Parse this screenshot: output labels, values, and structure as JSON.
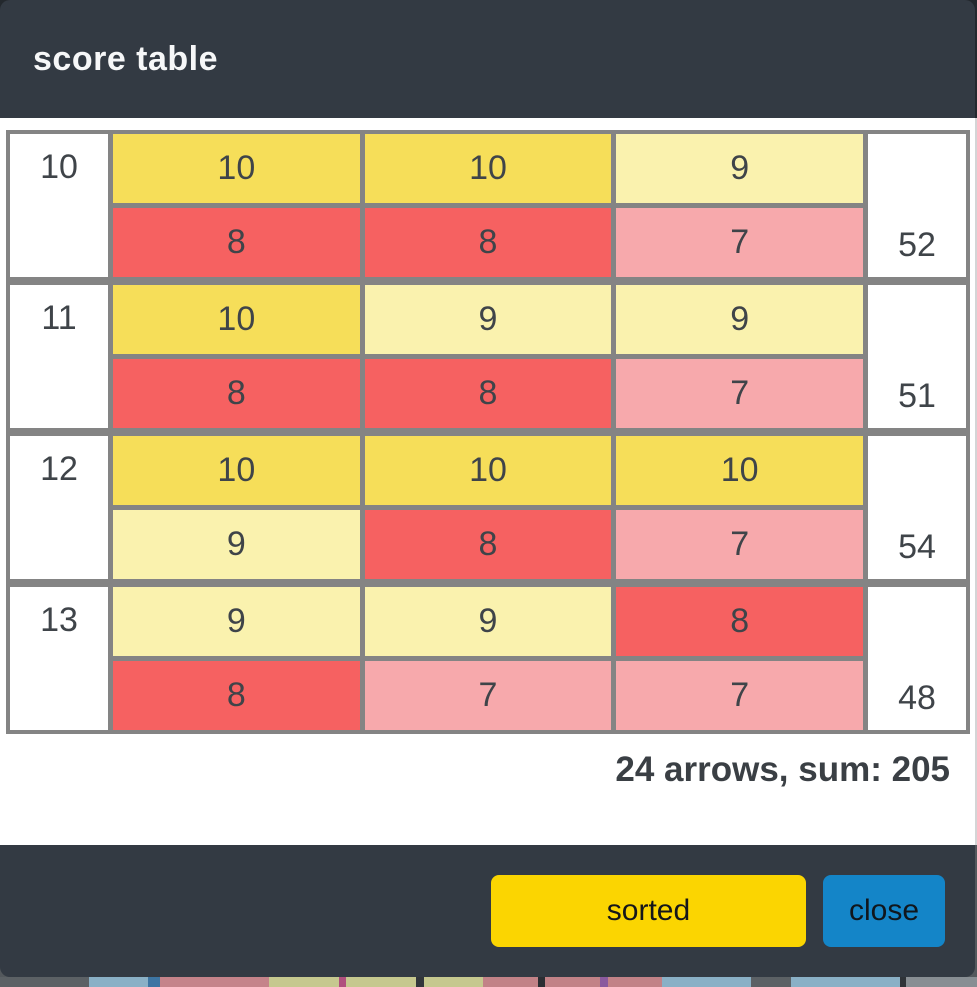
{
  "modal": {
    "title": "score table",
    "summary": "24 arrows, sum: 205",
    "buttons": {
      "sorted": "sorted",
      "close": "close"
    }
  },
  "score_table": {
    "rows": [
      {
        "end": "10",
        "arrows": [
          "10",
          "10",
          "9",
          "8",
          "8",
          "7"
        ],
        "sum": "52"
      },
      {
        "end": "11",
        "arrows": [
          "10",
          "9",
          "9",
          "8",
          "8",
          "7"
        ],
        "sum": "51"
      },
      {
        "end": "12",
        "arrows": [
          "10",
          "10",
          "10",
          "9",
          "8",
          "7"
        ],
        "sum": "54"
      },
      {
        "end": "13",
        "arrows": [
          "9",
          "9",
          "8",
          "8",
          "7",
          "7"
        ],
        "sum": "48"
      }
    ]
  },
  "score_colors": {
    "10": "#F6DE59",
    "9": "#FAF2AE",
    "8": "#F66161",
    "7": "#F7A9AC"
  },
  "colors": {
    "header_bg": "#333A43",
    "table_border": "#848484",
    "cell_text": "#3F4449",
    "sorted_button_bg": "#FBD501",
    "close_button_bg": "#1485C8",
    "body_bg": "#FFFFFF"
  },
  "background_page_strip": {
    "segments": [
      {
        "color": "#5C6165",
        "w": 90
      },
      {
        "color": "#8AB0C6",
        "w": 60
      },
      {
        "color": "#3D75A3",
        "w": 12
      },
      {
        "color": "#C5838A",
        "w": 110
      },
      {
        "color": "#C6C88F",
        "w": 70
      },
      {
        "color": "#B04F7E",
        "w": 8
      },
      {
        "color": "#C6C88F",
        "w": 70
      },
      {
        "color": "#32363B",
        "w": 8
      },
      {
        "color": "#C6C88F",
        "w": 60
      },
      {
        "color": "#C28287",
        "w": 55
      },
      {
        "color": "#2B2E33",
        "w": 8
      },
      {
        "color": "#C28287",
        "w": 55
      },
      {
        "color": "#8A5A9E",
        "w": 8
      },
      {
        "color": "#C28287",
        "w": 55
      },
      {
        "color": "#8AB0C6",
        "w": 90
      },
      {
        "color": "#5C6165",
        "w": 40
      },
      {
        "color": "#8AB0C6",
        "w": 110
      },
      {
        "color": "#2F3338",
        "w": 6
      },
      {
        "color": "#888E93",
        "w": 72
      }
    ]
  }
}
